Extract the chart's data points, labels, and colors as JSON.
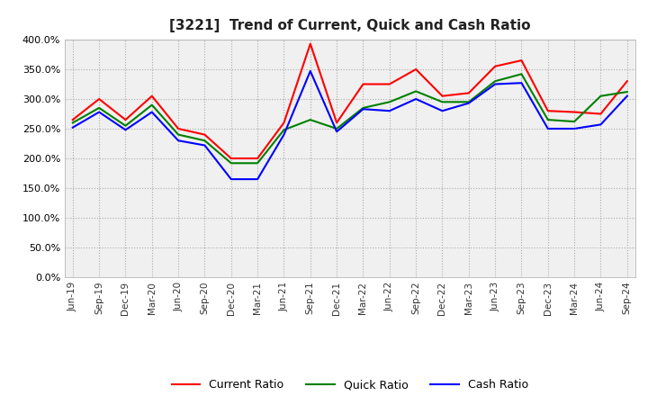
{
  "title": "[3221]  Trend of Current, Quick and Cash Ratio",
  "labels": [
    "Jun-19",
    "Sep-19",
    "Dec-19",
    "Mar-20",
    "Jun-20",
    "Sep-20",
    "Dec-20",
    "Mar-21",
    "Jun-21",
    "Sep-21",
    "Dec-21",
    "Mar-22",
    "Jun-22",
    "Sep-22",
    "Dec-22",
    "Mar-23",
    "Jun-23",
    "Sep-23",
    "Dec-23",
    "Mar-24",
    "Jun-24",
    "Sep-24"
  ],
  "current_ratio": [
    265,
    300,
    265,
    305,
    250,
    240,
    200,
    200,
    260,
    393,
    260,
    325,
    325,
    350,
    305,
    310,
    355,
    365,
    280,
    278,
    275,
    330
  ],
  "quick_ratio": [
    260,
    285,
    255,
    290,
    240,
    230,
    192,
    192,
    248,
    265,
    250,
    285,
    295,
    313,
    295,
    295,
    330,
    342,
    265,
    262,
    305,
    312
  ],
  "cash_ratio": [
    252,
    278,
    248,
    278,
    230,
    222,
    165,
    165,
    240,
    347,
    245,
    283,
    280,
    300,
    280,
    293,
    325,
    327,
    250,
    250,
    257,
    305
  ],
  "current_color": "#ff0000",
  "quick_color": "#008000",
  "cash_color": "#0000ff",
  "bg_color": "#ffffff",
  "plot_bg_color": "#f0f0f0",
  "ylim": [
    0,
    400
  ],
  "yticks": [
    0,
    50,
    100,
    150,
    200,
    250,
    300,
    350,
    400
  ],
  "legend_labels": [
    "Current Ratio",
    "Quick Ratio",
    "Cash Ratio"
  ]
}
